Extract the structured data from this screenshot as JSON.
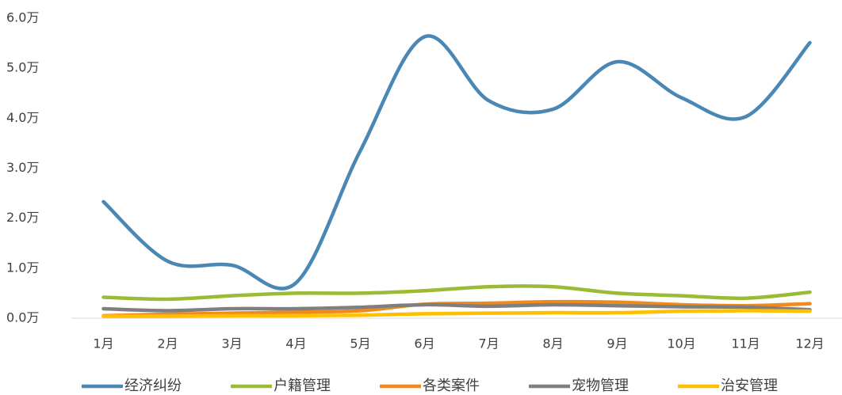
{
  "chart_data": {
    "type": "line",
    "categories": [
      "1月",
      "2月",
      "3月",
      "4月",
      "5月",
      "6月",
      "7月",
      "8月",
      "9月",
      "10月",
      "11月",
      "12月"
    ],
    "series": [
      {
        "name": "经济纠纷",
        "color": "#4a87b5",
        "values": [
          2.33,
          1.14,
          1.06,
          0.71,
          3.35,
          5.63,
          4.35,
          4.18,
          5.13,
          4.41,
          4.03,
          5.51
        ]
      },
      {
        "name": "户籍管理",
        "color": "#9bbb34",
        "values": [
          0.42,
          0.38,
          0.45,
          0.5,
          0.5,
          0.55,
          0.63,
          0.63,
          0.5,
          0.45,
          0.4,
          0.52
        ]
      },
      {
        "name": "各类案件",
        "color": "#f08a1c",
        "values": [
          0.05,
          0.08,
          0.1,
          0.12,
          0.15,
          0.28,
          0.3,
          0.33,
          0.32,
          0.27,
          0.25,
          0.29
        ]
      },
      {
        "name": "宠物管理",
        "color": "#7f7f7f",
        "values": [
          0.19,
          0.15,
          0.19,
          0.19,
          0.22,
          0.27,
          0.24,
          0.27,
          0.25,
          0.23,
          0.22,
          0.17
        ]
      },
      {
        "name": "治安管理",
        "color": "#ffc000",
        "values": [
          0.04,
          0.04,
          0.05,
          0.05,
          0.06,
          0.09,
          0.1,
          0.11,
          0.11,
          0.14,
          0.15,
          0.14
        ]
      }
    ],
    "ylim": [
      0,
      6
    ],
    "yticks": [
      {
        "value": 0,
        "label": "0.0万"
      },
      {
        "value": 1,
        "label": "1.0万"
      },
      {
        "value": 2,
        "label": "2.0万"
      },
      {
        "value": 3,
        "label": "3.0万"
      },
      {
        "value": 4,
        "label": "4.0万"
      },
      {
        "value": 5,
        "label": "5.0万"
      },
      {
        "value": 6,
        "label": "6.0万"
      }
    ],
    "grid": false,
    "legend": "bottom"
  }
}
